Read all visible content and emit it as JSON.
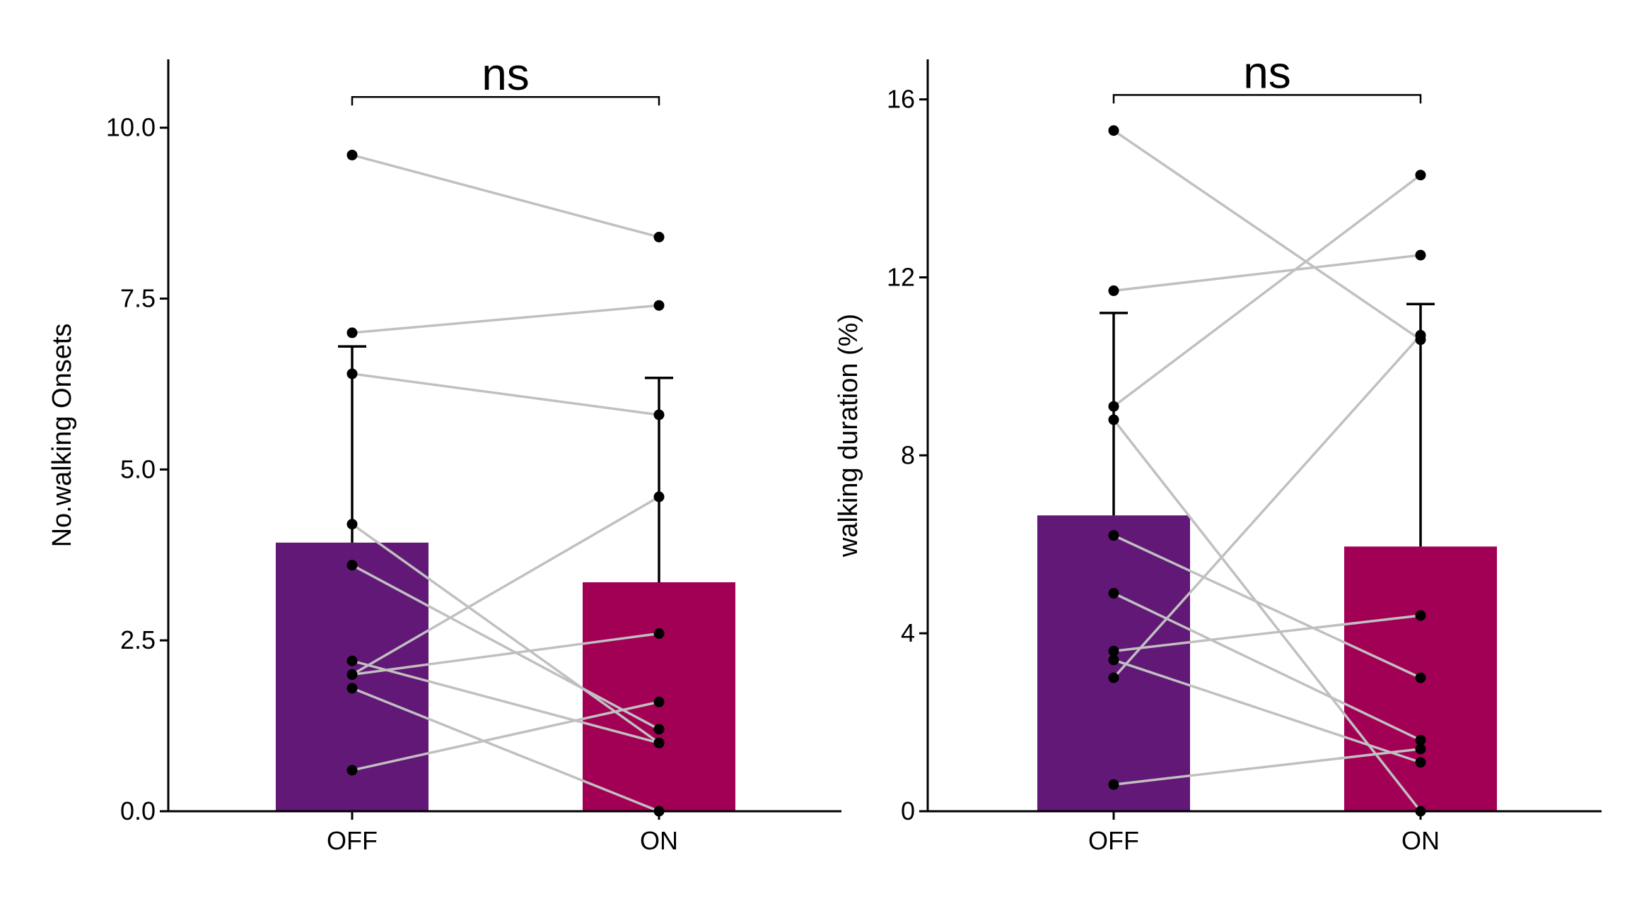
{
  "colors": {
    "off_bar": "#621877",
    "on_bar": "#a20055",
    "paired_line": "#c0c0c0",
    "point": "#000000",
    "axis": "#000000"
  },
  "chart_data": [
    {
      "type": "bar",
      "categories": [
        "OFF",
        "ON"
      ],
      "values": [
        3.93,
        3.35
      ],
      "error_upper": [
        6.8,
        6.34
      ],
      "ylabel": "No.walking Onsets",
      "xlabel": "",
      "ylim": [
        0,
        11
      ],
      "yticks": [
        0.0,
        2.5,
        5.0,
        7.5,
        10.0
      ],
      "ytick_labels": [
        "0.0",
        "2.5",
        "5.0",
        "7.5",
        "10.0"
      ],
      "grid": false,
      "significance": {
        "label": "ns",
        "from": "OFF",
        "to": "ON",
        "y": 10.45
      },
      "paired_points": [
        {
          "off": 9.6,
          "on": 8.4
        },
        {
          "off": 7.0,
          "on": 7.4
        },
        {
          "off": 6.4,
          "on": 5.8
        },
        {
          "off": 4.2,
          "on": 1.0
        },
        {
          "off": 3.6,
          "on": 1.2
        },
        {
          "off": 2.2,
          "on": 1.0
        },
        {
          "off": 2.0,
          "on": 2.6
        },
        {
          "off": 2.0,
          "on": 4.6
        },
        {
          "off": 1.8,
          "on": 0.0
        },
        {
          "off": 0.6,
          "on": 1.6
        }
      ]
    },
    {
      "type": "bar",
      "categories": [
        "OFF",
        "ON"
      ],
      "values": [
        6.65,
        5.95
      ],
      "error_upper": [
        11.2,
        11.4
      ],
      "ylabel": "walking duration (%)",
      "xlabel": "",
      "ylim": [
        0,
        16.9
      ],
      "yticks": [
        0,
        4,
        8,
        12,
        16
      ],
      "ytick_labels": [
        "0",
        "4",
        "8",
        "12",
        "16"
      ],
      "grid": false,
      "significance": {
        "label": "ns",
        "from": "OFF",
        "to": "ON",
        "y": 16.1
      },
      "paired_points": [
        {
          "off": 15.3,
          "on": 10.6
        },
        {
          "off": 11.7,
          "on": 12.5
        },
        {
          "off": 9.1,
          "on": 14.3
        },
        {
          "off": 8.8,
          "on": 0.0
        },
        {
          "off": 6.2,
          "on": 3.0
        },
        {
          "off": 4.9,
          "on": 1.6
        },
        {
          "off": 3.6,
          "on": 4.4
        },
        {
          "off": 3.4,
          "on": 1.1
        },
        {
          "off": 3.0,
          "on": 10.7
        },
        {
          "off": 0.6,
          "on": 1.4
        }
      ]
    }
  ]
}
